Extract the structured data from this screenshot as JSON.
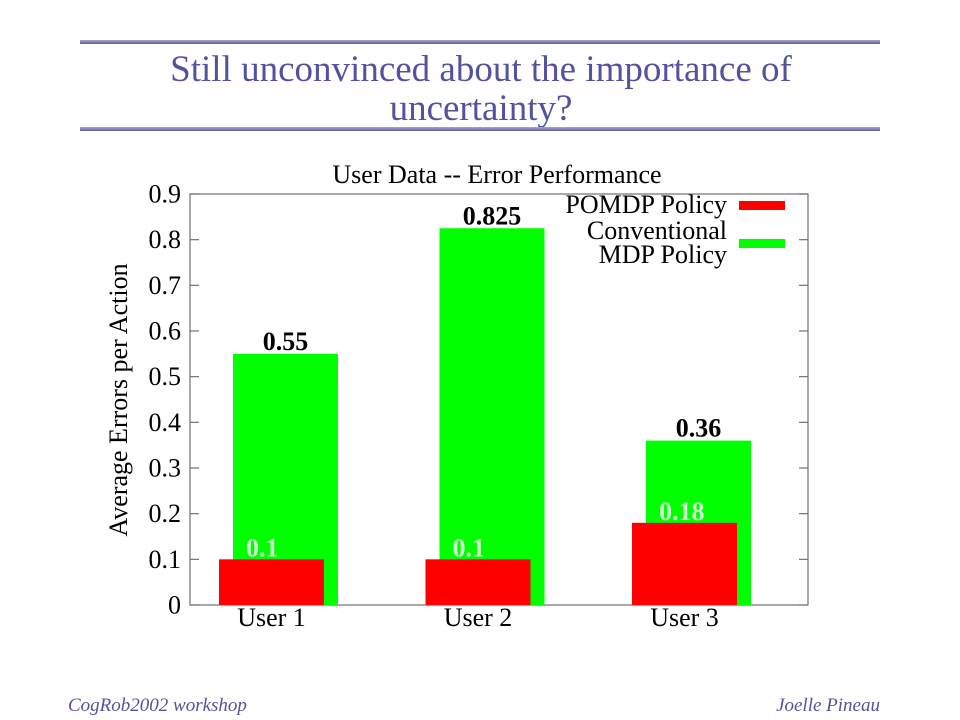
{
  "slide": {
    "title_lines": [
      "Still unconvinced about the importance of",
      "uncertainty?"
    ],
    "footer_left": "CogRob2002 workshop",
    "footer_right": "Joelle Pineau",
    "accent_color": "#52529e"
  },
  "chart_data": {
    "type": "bar",
    "title": "User Data -- Error Performance",
    "ylabel": "Average Errors per Action",
    "categories": [
      "User 1",
      "User 2",
      "User 3"
    ],
    "series": [
      {
        "name": "POMDP Policy",
        "values": [
          0.1,
          0.1,
          0.18
        ],
        "data_labels": [
          "0.1",
          "0.1",
          "0.18"
        ],
        "color": "#ff0000",
        "label_color": "#d0ffd0"
      },
      {
        "name": "Conventional\nMDP Policy",
        "values": [
          0.55,
          0.825,
          0.36
        ],
        "data_labels": [
          "0.55",
          "0.825",
          "0.36"
        ],
        "color": "#00ff00",
        "label_color": "#000000"
      }
    ],
    "ylim": [
      0,
      0.9
    ],
    "ytick_labels": [
      "0",
      "0.1",
      "0.2",
      "0.3",
      "0.4",
      "0.5",
      "0.6",
      "0.7",
      "0.8",
      "0.9"
    ],
    "grid": false,
    "legend": "top-right"
  }
}
